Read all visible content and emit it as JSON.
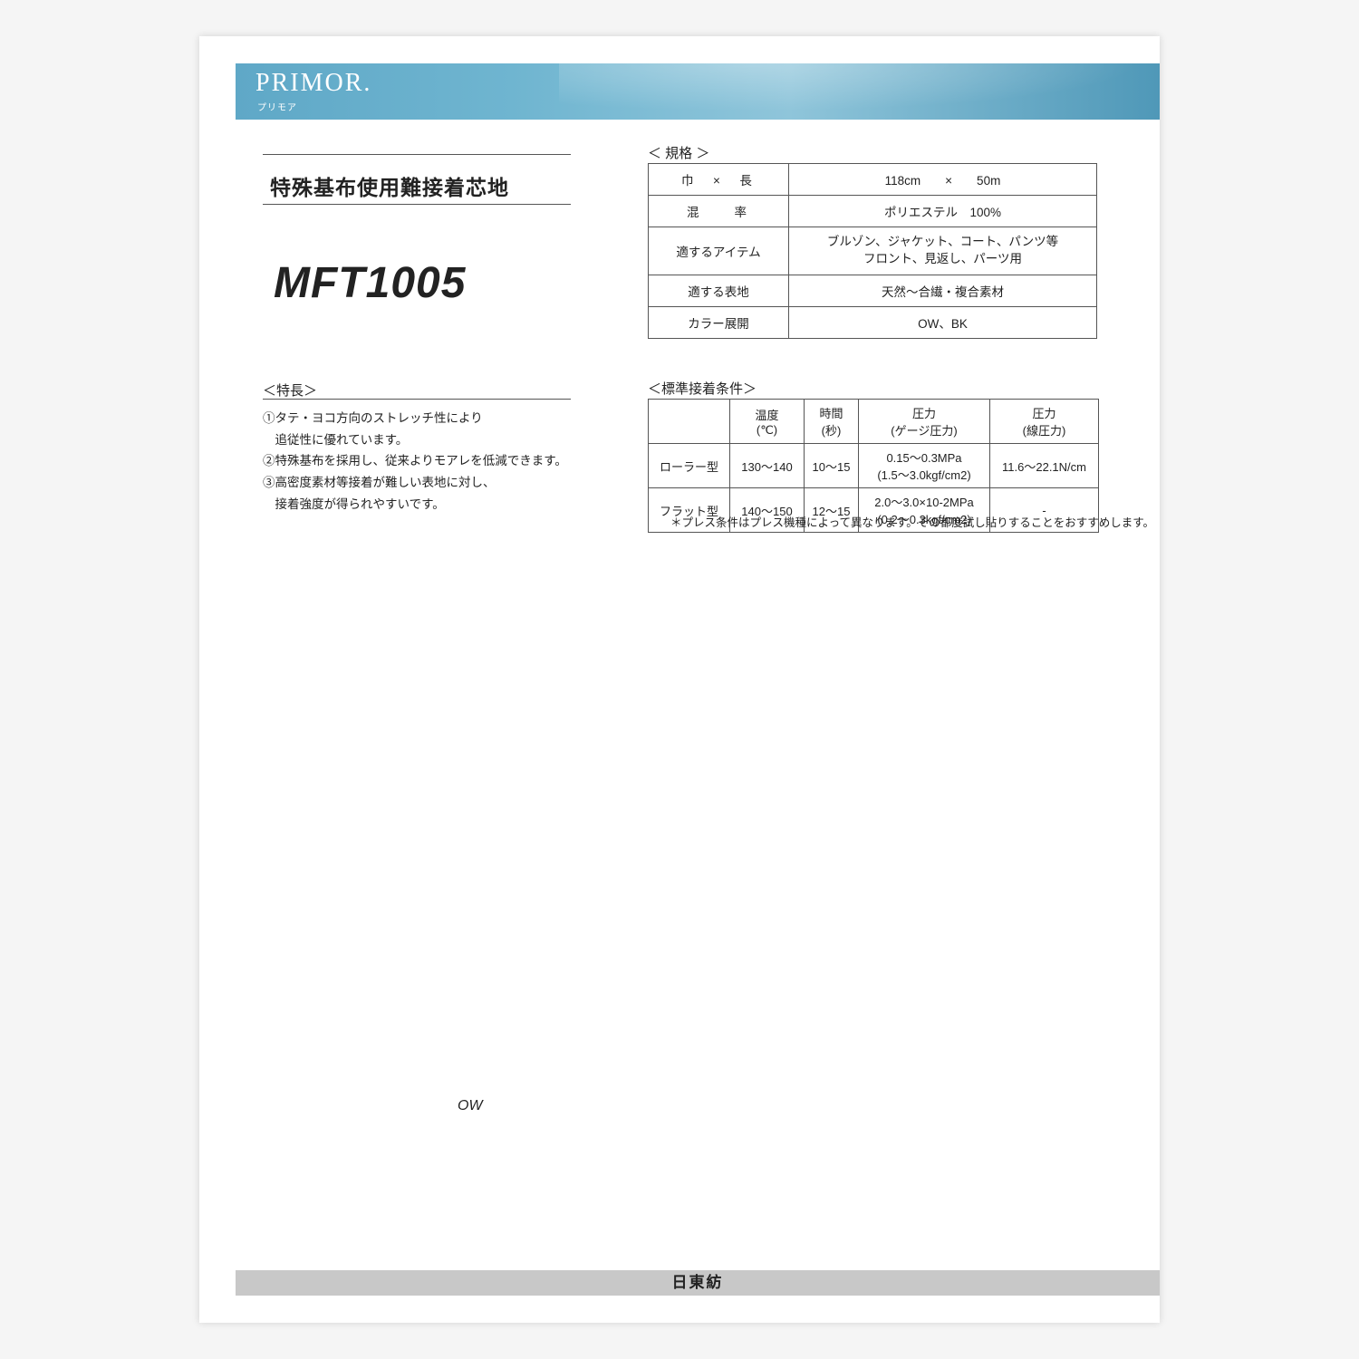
{
  "brand": {
    "name": "PRIMOR.",
    "sub": "プリモア"
  },
  "title": "特殊基布使用難接着芯地",
  "product_code": "MFT1005",
  "features": {
    "heading": "＜特長＞",
    "items": [
      "①タテ・ヨコ方向のストレッチ性により\n　追従性に優れています。",
      "②特殊基布を採用し、従来よりモアレを低減できます。",
      "③高密度素材等接着が難しい表地に対し、\n　接着強度が得られやすいです。"
    ]
  },
  "spec": {
    "heading": "＜ 規格 ＞",
    "rows": [
      {
        "label": "巾　×　長",
        "value": "118cm　　×　　50m"
      },
      {
        "label": "混　　率",
        "value": "ポリエステル　100%"
      },
      {
        "label": "適するアイテム",
        "value": "ブルゾン、ジャケット、コート、パンツ等\nフロント、見返し、パーツ用"
      },
      {
        "label": "適する表地",
        "value": "天然～合繊・複合素材"
      },
      {
        "label": "カラー展開",
        "value": "OW、BK"
      }
    ]
  },
  "conditions": {
    "heading": "＜標準接着条件＞",
    "headers": {
      "c0": "",
      "c1": "温度\n(℃)",
      "c2": "時間\n(秒)",
      "c3": "圧力\n(ゲージ圧力)",
      "c4": "圧力\n(線圧力)"
    },
    "rows": [
      {
        "c0": "ローラー型",
        "c1": "130～140",
        "c2": "10～15",
        "c3": "0.15～0.3MPa\n(1.5～3.0kgf/cm2)",
        "c4": "11.6～22.1N/cm"
      },
      {
        "c0": "フラット型",
        "c1": "140～150",
        "c2": "12～15",
        "c3": "2.0～3.0×10-2MPa\n(0.2～0.3kgf/cm2)",
        "c4": "-"
      }
    ],
    "note": "＊プレス条件はプレス機種によって異なります。その都度試し貼りすることをおすすめします。"
  },
  "swatch_label": "OW",
  "footer": "日東紡",
  "colors": {
    "band_start": "#5fa8c7",
    "band_end": "#4f98b8",
    "border": "#555555",
    "footer_bg": "#c8c8c8",
    "text": "#222222",
    "page_bg": "#ffffff"
  },
  "fontsize": {
    "brand": 28,
    "title": 23,
    "product_code": 48,
    "body": 13.5,
    "table": 13,
    "note": 12.5,
    "footer": 17
  }
}
